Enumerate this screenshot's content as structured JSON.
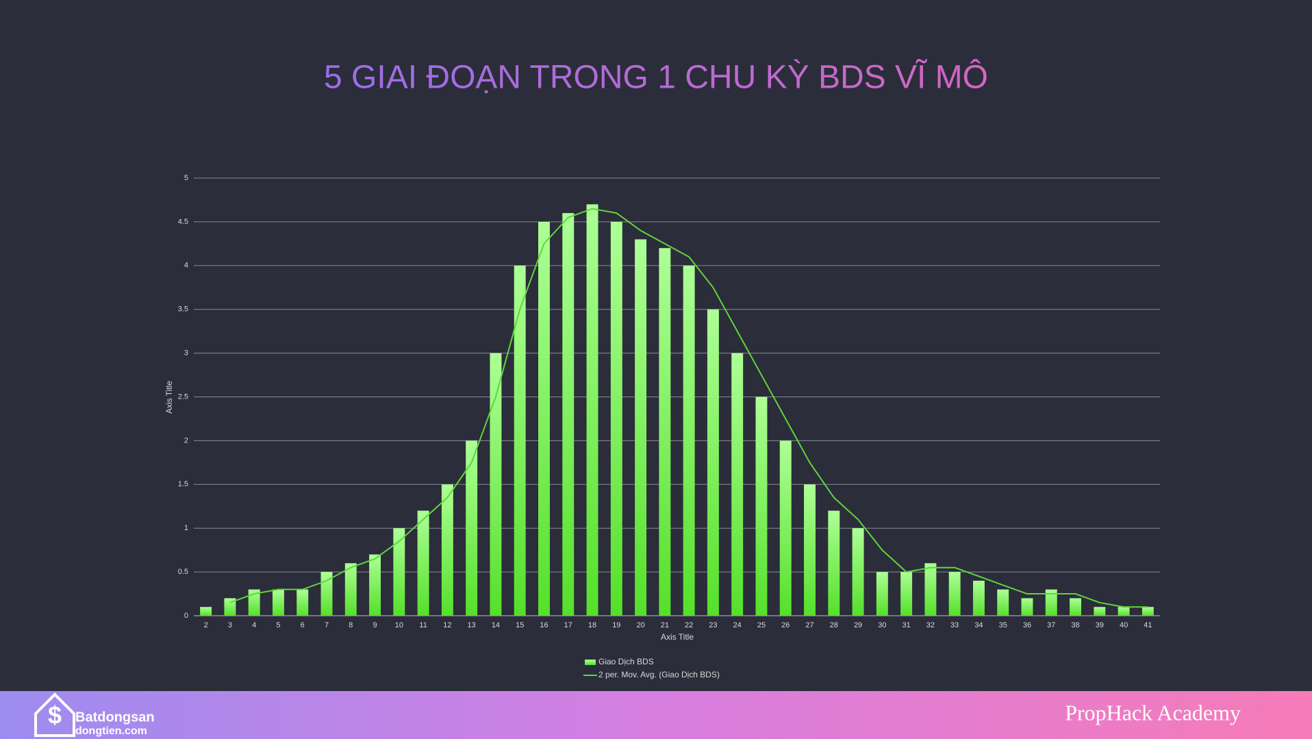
{
  "chart_data": {
    "type": "bar",
    "title": "5 GIAI ĐOẠN TRONG 1 CHU KỲ BDS VĨ MÔ",
    "x_label": "Axis Title",
    "y_label": "Axis Title",
    "categories": [
      "2",
      "3",
      "4",
      "5",
      "6",
      "7",
      "8",
      "9",
      "10",
      "11",
      "12",
      "13",
      "14",
      "15",
      "16",
      "17",
      "18",
      "19",
      "20",
      "21",
      "22",
      "23",
      "24",
      "25",
      "26",
      "27",
      "28",
      "29",
      "30",
      "31",
      "32",
      "33",
      "34",
      "35",
      "36",
      "37",
      "38",
      "39",
      "40",
      "41"
    ],
    "series": [
      {
        "name": "Giao Dịch BDS",
        "color": "#5fe636",
        "values": [
          0.1,
          0.2,
          0.3,
          0.3,
          0.3,
          0.5,
          0.6,
          0.7,
          1.0,
          1.2,
          1.5,
          2.0,
          3.0,
          4.0,
          4.5,
          4.6,
          4.7,
          4.5,
          4.3,
          4.2,
          4.0,
          3.5,
          3.0,
          2.5,
          2.0,
          1.5,
          1.2,
          1.0,
          0.5,
          0.5,
          0.6,
          0.5,
          0.4,
          0.3,
          0.2,
          0.3,
          0.2,
          0.1,
          0.1,
          0.1
        ]
      },
      {
        "name": "2 per. Mov. Avg. (Giao Dịch BDS)",
        "type": "line",
        "color": "#5fd63a",
        "values": [
          null,
          0.15,
          0.25,
          0.3,
          0.3,
          0.4,
          0.55,
          0.65,
          0.85,
          1.1,
          1.35,
          1.75,
          2.5,
          3.5,
          4.25,
          4.55,
          4.65,
          4.6,
          4.4,
          4.25,
          4.1,
          3.75,
          3.25,
          2.75,
          2.25,
          1.75,
          1.35,
          1.1,
          0.75,
          0.5,
          0.55,
          0.55,
          0.45,
          0.35,
          0.25,
          0.25,
          0.25,
          0.15,
          0.1,
          0.1
        ]
      }
    ],
    "ylim": [
      0,
      5
    ],
    "yticks": [
      0,
      0.5,
      1,
      1.5,
      2,
      2.5,
      3,
      3.5,
      4,
      4.5,
      5
    ],
    "grid": true,
    "legend": "bottom"
  },
  "footer": {
    "logo_name": "Batdongsan",
    "logo_site": "dongtien.com",
    "brand": "PropHack Academy"
  }
}
